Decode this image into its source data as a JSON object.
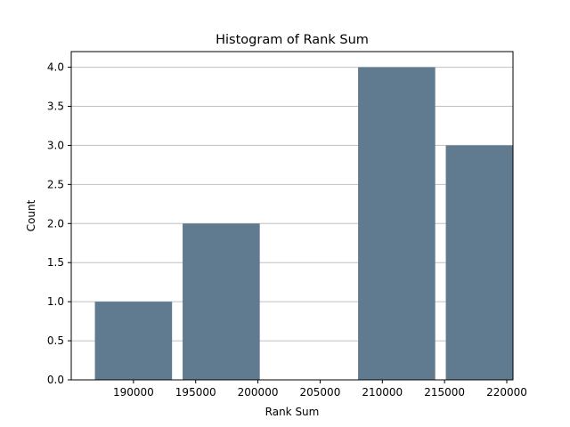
{
  "chart_data": {
    "type": "bar",
    "title": "Histogram of Rank Sum",
    "xlabel": "Rank Sum",
    "ylabel": "Count",
    "xlim": [
      185000,
      220500
    ],
    "ylim": [
      0,
      4.2
    ],
    "grid": "y",
    "bar_color": "#607b8f",
    "bins": [
      {
        "left": 186900,
        "right": 193100,
        "count": 1
      },
      {
        "left": 193950,
        "right": 200150,
        "count": 2
      },
      {
        "left": 201000,
        "right": 207200,
        "count": 0
      },
      {
        "left": 208050,
        "right": 214250,
        "count": 4
      },
      {
        "left": 215100,
        "right": 221300,
        "count": 3
      }
    ],
    "xticks": [
      {
        "value": 190000,
        "label": "190000"
      },
      {
        "value": 195000,
        "label": "195000"
      },
      {
        "value": 200000,
        "label": "200000"
      },
      {
        "value": 205000,
        "label": "205000"
      },
      {
        "value": 210000,
        "label": "210000"
      },
      {
        "value": 215000,
        "label": "215000"
      },
      {
        "value": 220000,
        "label": "220000"
      }
    ],
    "yticks": [
      {
        "value": 0.0,
        "label": "0.0"
      },
      {
        "value": 0.5,
        "label": "0.5"
      },
      {
        "value": 1.0,
        "label": "1.0"
      },
      {
        "value": 1.5,
        "label": "1.5"
      },
      {
        "value": 2.0,
        "label": "2.0"
      },
      {
        "value": 2.5,
        "label": "2.5"
      },
      {
        "value": 3.0,
        "label": "3.0"
      },
      {
        "value": 3.5,
        "label": "3.5"
      },
      {
        "value": 4.0,
        "label": "4.0"
      }
    ]
  }
}
